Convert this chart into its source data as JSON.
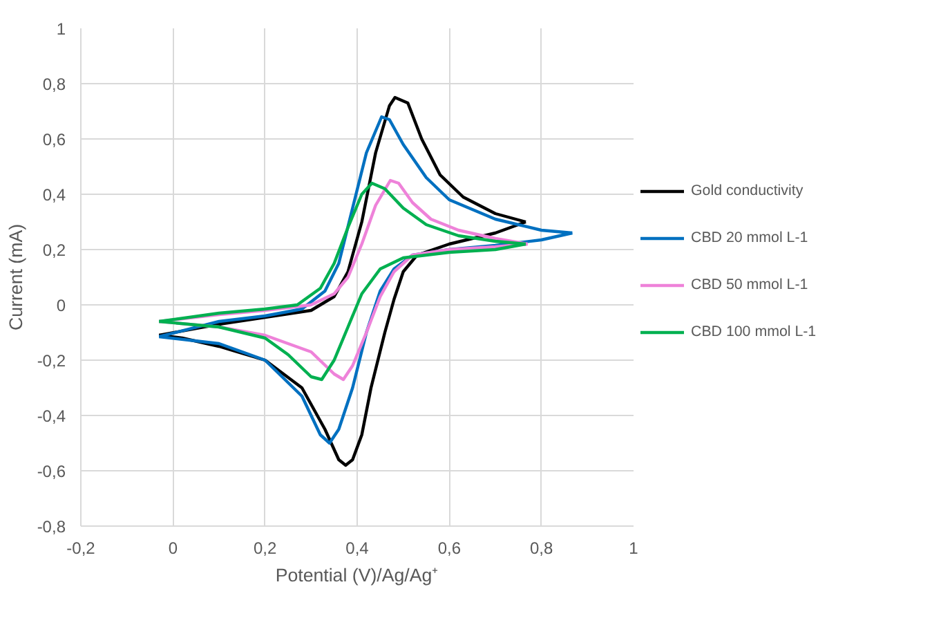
{
  "chart_data": {
    "type": "line",
    "xlabel": "Potential (V)/Ag/Ag⁺",
    "ylabel": "Current (mA)",
    "xlim": [
      -0.2,
      1
    ],
    "ylim": [
      -0.8,
      1
    ],
    "xticks": [
      {
        "value": -0.2,
        "label": "-0,2"
      },
      0,
      {
        "value": 0.2,
        "label": "0,2"
      },
      {
        "value": 0.4,
        "label": "0,4"
      },
      {
        "value": 0.6,
        "label": "0,6"
      },
      {
        "value": 0.8,
        "label": "0,8"
      },
      1
    ],
    "yticks": [
      {
        "value": -0.8,
        "label": "-0,8"
      },
      {
        "value": -0.6,
        "label": "-0,6"
      },
      {
        "value": -0.4,
        "label": "-0,4"
      },
      {
        "value": -0.2,
        "label": "-0,2"
      },
      0,
      {
        "value": 0.2,
        "label": "0,2"
      },
      {
        "value": 0.4,
        "label": "0,4"
      },
      {
        "value": 0.6,
        "label": "0,6"
      },
      {
        "value": 0.8,
        "label": "0,8"
      },
      1
    ],
    "grid": true,
    "legend": "right",
    "marker": "none",
    "line_style": "solid",
    "series": [
      {
        "name": "Gold conductivity",
        "color": "#000000",
        "x": [
          -0.03,
          0.1,
          0.2,
          0.3,
          0.35,
          0.38,
          0.41,
          0.44,
          0.47,
          0.482,
          0.51,
          0.54,
          0.58,
          0.63,
          0.7,
          0.766
        ],
        "values": [
          -0.11,
          -0.07,
          -0.045,
          -0.02,
          0.03,
          0.12,
          0.3,
          0.55,
          0.72,
          0.75,
          0.73,
          0.6,
          0.47,
          0.39,
          0.33,
          0.3
        ]
      },
      {
        "color": "#000000",
        "x": [
          -0.03,
          0.02,
          0.1,
          0.2,
          0.28,
          0.33,
          0.36,
          0.375,
          0.39,
          0.41,
          0.43,
          0.46,
          0.48,
          0.5,
          0.53,
          0.6,
          0.7,
          0.766
        ],
        "values": [
          -0.11,
          -0.12,
          -0.15,
          -0.2,
          -0.3,
          -0.45,
          -0.56,
          -0.58,
          -0.56,
          -0.47,
          -0.3,
          -0.1,
          0.02,
          0.12,
          0.18,
          0.22,
          0.26,
          0.3
        ]
      },
      {
        "name": "CBD 20 mmol L-1",
        "color": "#0070c0",
        "x": [
          -0.03,
          0.1,
          0.2,
          0.28,
          0.33,
          0.36,
          0.39,
          0.42,
          0.453,
          0.47,
          0.5,
          0.55,
          0.6,
          0.7,
          0.8,
          0.867
        ],
        "values": [
          -0.115,
          -0.06,
          -0.04,
          -0.015,
          0.05,
          0.15,
          0.35,
          0.55,
          0.68,
          0.67,
          0.58,
          0.46,
          0.38,
          0.31,
          0.27,
          0.26
        ]
      },
      {
        "color": "#0070c0",
        "x": [
          -0.03,
          0.1,
          0.2,
          0.28,
          0.32,
          0.34,
          0.36,
          0.39,
          0.42,
          0.45,
          0.48,
          0.52,
          0.6,
          0.7,
          0.8,
          0.867
        ],
        "values": [
          -0.115,
          -0.14,
          -0.2,
          -0.33,
          -0.47,
          -0.5,
          -0.45,
          -0.3,
          -0.1,
          0.05,
          0.13,
          0.18,
          0.2,
          0.215,
          0.235,
          0.26
        ]
      },
      {
        "name": "CBD 50 mmol L-1",
        "color": "#ee82d9",
        "x": [
          -0.03,
          0.1,
          0.2,
          0.3,
          0.35,
          0.38,
          0.41,
          0.44,
          0.472,
          0.49,
          0.52,
          0.56,
          0.62,
          0.7,
          0.77
        ],
        "values": [
          -0.06,
          -0.035,
          -0.02,
          0.0,
          0.04,
          0.1,
          0.22,
          0.36,
          0.45,
          0.44,
          0.37,
          0.31,
          0.27,
          0.24,
          0.22
        ]
      },
      {
        "color": "#ee82d9",
        "x": [
          -0.03,
          0.1,
          0.2,
          0.3,
          0.35,
          0.37,
          0.39,
          0.42,
          0.45,
          0.48,
          0.52,
          0.6,
          0.7,
          0.77
        ],
        "values": [
          -0.06,
          -0.08,
          -0.11,
          -0.17,
          -0.25,
          -0.27,
          -0.22,
          -0.1,
          0.03,
          0.12,
          0.18,
          0.2,
          0.21,
          0.22
        ]
      },
      {
        "name": "CBD 100 mmol L-1",
        "color": "#00b050",
        "x": [
          -0.03,
          0.1,
          0.2,
          0.27,
          0.32,
          0.35,
          0.38,
          0.41,
          0.432,
          0.46,
          0.5,
          0.55,
          0.62,
          0.7,
          0.766
        ],
        "values": [
          -0.06,
          -0.03,
          -0.015,
          0.0,
          0.06,
          0.15,
          0.28,
          0.4,
          0.44,
          0.42,
          0.35,
          0.29,
          0.25,
          0.23,
          0.22
        ]
      },
      {
        "color": "#00b050",
        "x": [
          -0.03,
          0.1,
          0.2,
          0.25,
          0.3,
          0.323,
          0.35,
          0.38,
          0.41,
          0.45,
          0.5,
          0.6,
          0.7,
          0.766
        ],
        "values": [
          -0.06,
          -0.08,
          -0.12,
          -0.18,
          -0.26,
          -0.27,
          -0.2,
          -0.08,
          0.04,
          0.13,
          0.17,
          0.19,
          0.2,
          0.22
        ]
      }
    ]
  }
}
